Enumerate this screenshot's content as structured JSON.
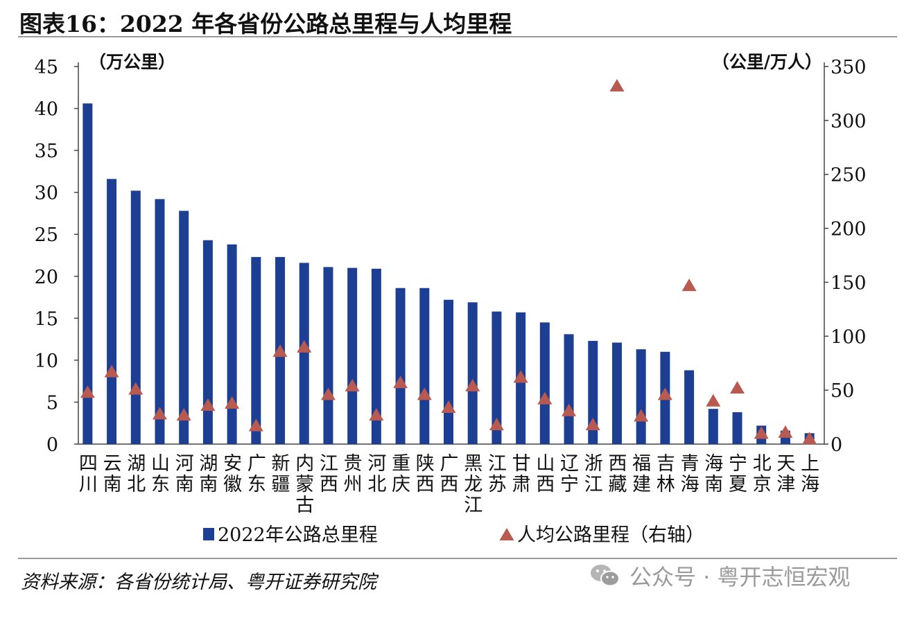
{
  "figure": {
    "title": "图表16：2022 年各省份公路总里程与人均里程",
    "source": "资料来源：各省份统计局、粤开证券研究院",
    "watermark": "公众号 · 粤开志恒宏观",
    "watermark_icon": "wechat-icon"
  },
  "chart_data": {
    "type": "bar+scatter",
    "categories": [
      [
        "四",
        "川"
      ],
      [
        "云",
        "南"
      ],
      [
        "湖",
        "北"
      ],
      [
        "山",
        "东"
      ],
      [
        "河",
        "南"
      ],
      [
        "湖",
        "南"
      ],
      [
        "安",
        "徽"
      ],
      [
        "广",
        "东"
      ],
      [
        "新",
        "疆"
      ],
      [
        "内",
        "蒙",
        "古"
      ],
      [
        "江",
        "西"
      ],
      [
        "贵",
        "州"
      ],
      [
        "河",
        "北"
      ],
      [
        "重",
        "庆"
      ],
      [
        "陕",
        "西"
      ],
      [
        "广",
        "西"
      ],
      [
        "黑",
        "龙",
        "江"
      ],
      [
        "江",
        "苏"
      ],
      [
        "甘",
        "肃"
      ],
      [
        "山",
        "西"
      ],
      [
        "辽",
        "宁"
      ],
      [
        "浙",
        "江"
      ],
      [
        "西",
        "藏"
      ],
      [
        "福",
        "建"
      ],
      [
        "吉",
        "林"
      ],
      [
        "青",
        "海"
      ],
      [
        "海",
        "南"
      ],
      [
        "宁",
        "夏"
      ],
      [
        "北",
        "京"
      ],
      [
        "天",
        "津"
      ],
      [
        "上",
        "海"
      ]
    ],
    "series": [
      {
        "name": "2022年公路总里程",
        "type": "bar",
        "axis": "left",
        "color": "#1c3f94",
        "values": [
          40.6,
          31.6,
          30.2,
          29.2,
          27.8,
          24.3,
          23.8,
          22.3,
          22.3,
          21.6,
          21.1,
          21.0,
          20.9,
          18.6,
          18.6,
          17.2,
          16.9,
          15.8,
          15.7,
          14.5,
          13.1,
          12.3,
          12.1,
          11.3,
          11.0,
          8.8,
          4.2,
          3.8,
          2.2,
          1.6,
          1.3
        ]
      },
      {
        "name": "人均公路里程（右轴）",
        "type": "scatter",
        "marker": "triangle",
        "axis": "right",
        "color": "#b85a50",
        "values": [
          48,
          67,
          51,
          28,
          27,
          36,
          38,
          17,
          86,
          90,
          46,
          54,
          27,
          57,
          46,
          34,
          54,
          18,
          62,
          42,
          31,
          18,
          332,
          26,
          46,
          147,
          40,
          52,
          10,
          11,
          5
        ]
      }
    ],
    "y_left": {
      "label": "（万公里）",
      "min": 0,
      "max": 45,
      "ticks": [
        0,
        5,
        10,
        15,
        20,
        25,
        30,
        35,
        40,
        45
      ]
    },
    "y_right": {
      "label": "（公里/万人）",
      "min": 0,
      "max": 350,
      "ticks": [
        0,
        50,
        100,
        150,
        200,
        250,
        300,
        350
      ]
    },
    "legend": {
      "position": "bottom"
    },
    "grid": false
  }
}
